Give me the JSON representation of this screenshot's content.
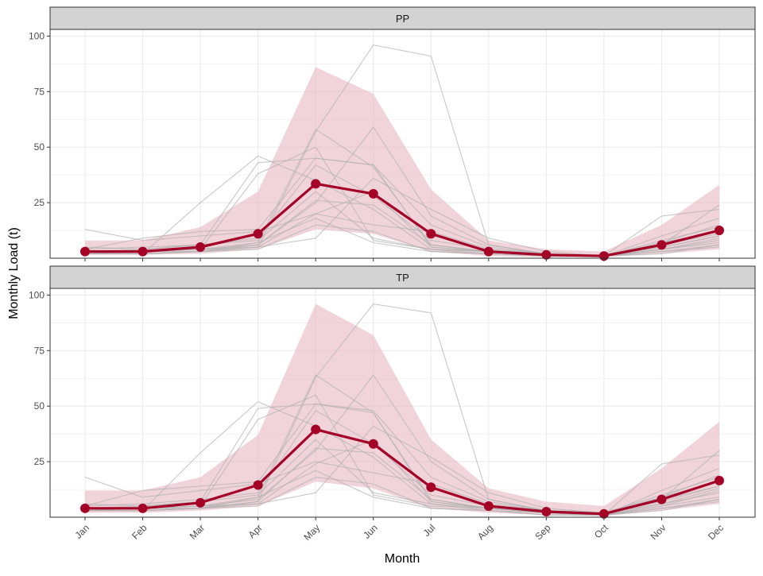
{
  "chart_data": {
    "type": "line",
    "ylabel": "Monthly Load (t)",
    "xlabel": "Month",
    "x": [
      "Jan",
      "Feb",
      "Mar",
      "Apr",
      "May",
      "Jun",
      "Jul",
      "Aug",
      "Sep",
      "Oct",
      "Nov",
      "Dec"
    ],
    "colors": {
      "highlight": "#a50026",
      "ribbon": "#e8b8c2",
      "background_lines": "#b0b0b0",
      "strip_fill": "#d3d3d3",
      "grid": "#ebebeb"
    },
    "panels": [
      {
        "strip_label": "PP",
        "ylim": [
          0,
          103
        ],
        "y_ticks": [
          25,
          50,
          75,
          100
        ],
        "mean": [
          3,
          3,
          5,
          11,
          33.5,
          29,
          11,
          3,
          1.5,
          1,
          6,
          12.5
        ],
        "band_lower": [
          1.5,
          1.5,
          2,
          4,
          13,
          11,
          3,
          1,
          0.5,
          0.5,
          2,
          4
        ],
        "band_upper": [
          8,
          8,
          14,
          30,
          86,
          74,
          31,
          8,
          4,
          3,
          15,
          33
        ],
        "background_series": [
          [
            13,
            8,
            10,
            12,
            20,
            15,
            12,
            4,
            2,
            1,
            8,
            14
          ],
          [
            4,
            9,
            12,
            13,
            45,
            42,
            15,
            5,
            2,
            1,
            5,
            10
          ],
          [
            2,
            2,
            3,
            5,
            57,
            96,
            91,
            6,
            2,
            1,
            4,
            8
          ],
          [
            3,
            3,
            4,
            6,
            25,
            59,
            19,
            6,
            2,
            1,
            7,
            12
          ],
          [
            5,
            4,
            6,
            8,
            30,
            9,
            4,
            3,
            1,
            1,
            3,
            6
          ],
          [
            2,
            2,
            25,
            46,
            35,
            22,
            4,
            2,
            1,
            1,
            19,
            22
          ],
          [
            3,
            4,
            6,
            43,
            45,
            42,
            5,
            3,
            1,
            1,
            6,
            24
          ],
          [
            2,
            3,
            4,
            38,
            50,
            8,
            4,
            3,
            1,
            1,
            4,
            7
          ],
          [
            2,
            2,
            3,
            5,
            20,
            30,
            5,
            3,
            1,
            1,
            5,
            10
          ],
          [
            3,
            3,
            4,
            7,
            58,
            41,
            6,
            3,
            1,
            1,
            7,
            15
          ],
          [
            2,
            2,
            3,
            4,
            15,
            12,
            3,
            2,
            1,
            1,
            3,
            5
          ],
          [
            4,
            5,
            6,
            9,
            42,
            28,
            8,
            4,
            2,
            1,
            10,
            18
          ],
          [
            2,
            2,
            3,
            6,
            26,
            24,
            6,
            3,
            1,
            1,
            4,
            9
          ],
          [
            3,
            3,
            4,
            5,
            9,
            36,
            22,
            9,
            3,
            1,
            6,
            11
          ],
          [
            2,
            3,
            3,
            7,
            18,
            7,
            3,
            2,
            1,
            1,
            2,
            6
          ]
        ]
      },
      {
        "strip_label": "TP",
        "ylim": [
          0,
          103
        ],
        "y_ticks": [
          25,
          50,
          75,
          100
        ],
        "mean": [
          4,
          4,
          6.5,
          14.5,
          39.5,
          33,
          13.5,
          5,
          2.5,
          1.5,
          8,
          16.5
        ],
        "band_lower": [
          2,
          2,
          3,
          5,
          16,
          13,
          4,
          2,
          1,
          0.5,
          3,
          6
        ],
        "band_upper": [
          12,
          12,
          18,
          37,
          96,
          82,
          35,
          13,
          7,
          5,
          22,
          43
        ],
        "background_series": [
          [
            18,
            9,
            12,
            15,
            25,
            20,
            15,
            6,
            3,
            2,
            10,
            18
          ],
          [
            5,
            12,
            14,
            16,
            51,
            48,
            18,
            7,
            3,
            2,
            7,
            14
          ],
          [
            3,
            3,
            4,
            7,
            63,
            96,
            92,
            8,
            3,
            2,
            6,
            11
          ],
          [
            4,
            4,
            5,
            8,
            30,
            64,
            25,
            8,
            3,
            2,
            9,
            16
          ],
          [
            6,
            5,
            7,
            10,
            35,
            11,
            6,
            4,
            2,
            1,
            4,
            8
          ],
          [
            3,
            3,
            29,
            52,
            41,
            27,
            6,
            3,
            2,
            1,
            24,
            28
          ],
          [
            4,
            5,
            7,
            49,
            51,
            47,
            7,
            4,
            2,
            1,
            8,
            30
          ],
          [
            3,
            4,
            5,
            44,
            55,
            10,
            5,
            4,
            2,
            1,
            5,
            9
          ],
          [
            3,
            3,
            4,
            6,
            24,
            35,
            7,
            4,
            2,
            1,
            6,
            13
          ],
          [
            4,
            4,
            5,
            9,
            64,
            47,
            8,
            4,
            2,
            1,
            9,
            19
          ],
          [
            3,
            3,
            4,
            5,
            18,
            15,
            4,
            3,
            1,
            1,
            4,
            7
          ],
          [
            5,
            6,
            8,
            11,
            48,
            33,
            10,
            5,
            2,
            1,
            12,
            22
          ],
          [
            3,
            3,
            4,
            7,
            31,
            29,
            8,
            4,
            2,
            1,
            5,
            12
          ],
          [
            4,
            4,
            5,
            6,
            11,
            41,
            27,
            11,
            4,
            2,
            8,
            14
          ],
          [
            3,
            4,
            4,
            9,
            21,
            9,
            4,
            3,
            1,
            1,
            3,
            8
          ]
        ]
      }
    ]
  }
}
